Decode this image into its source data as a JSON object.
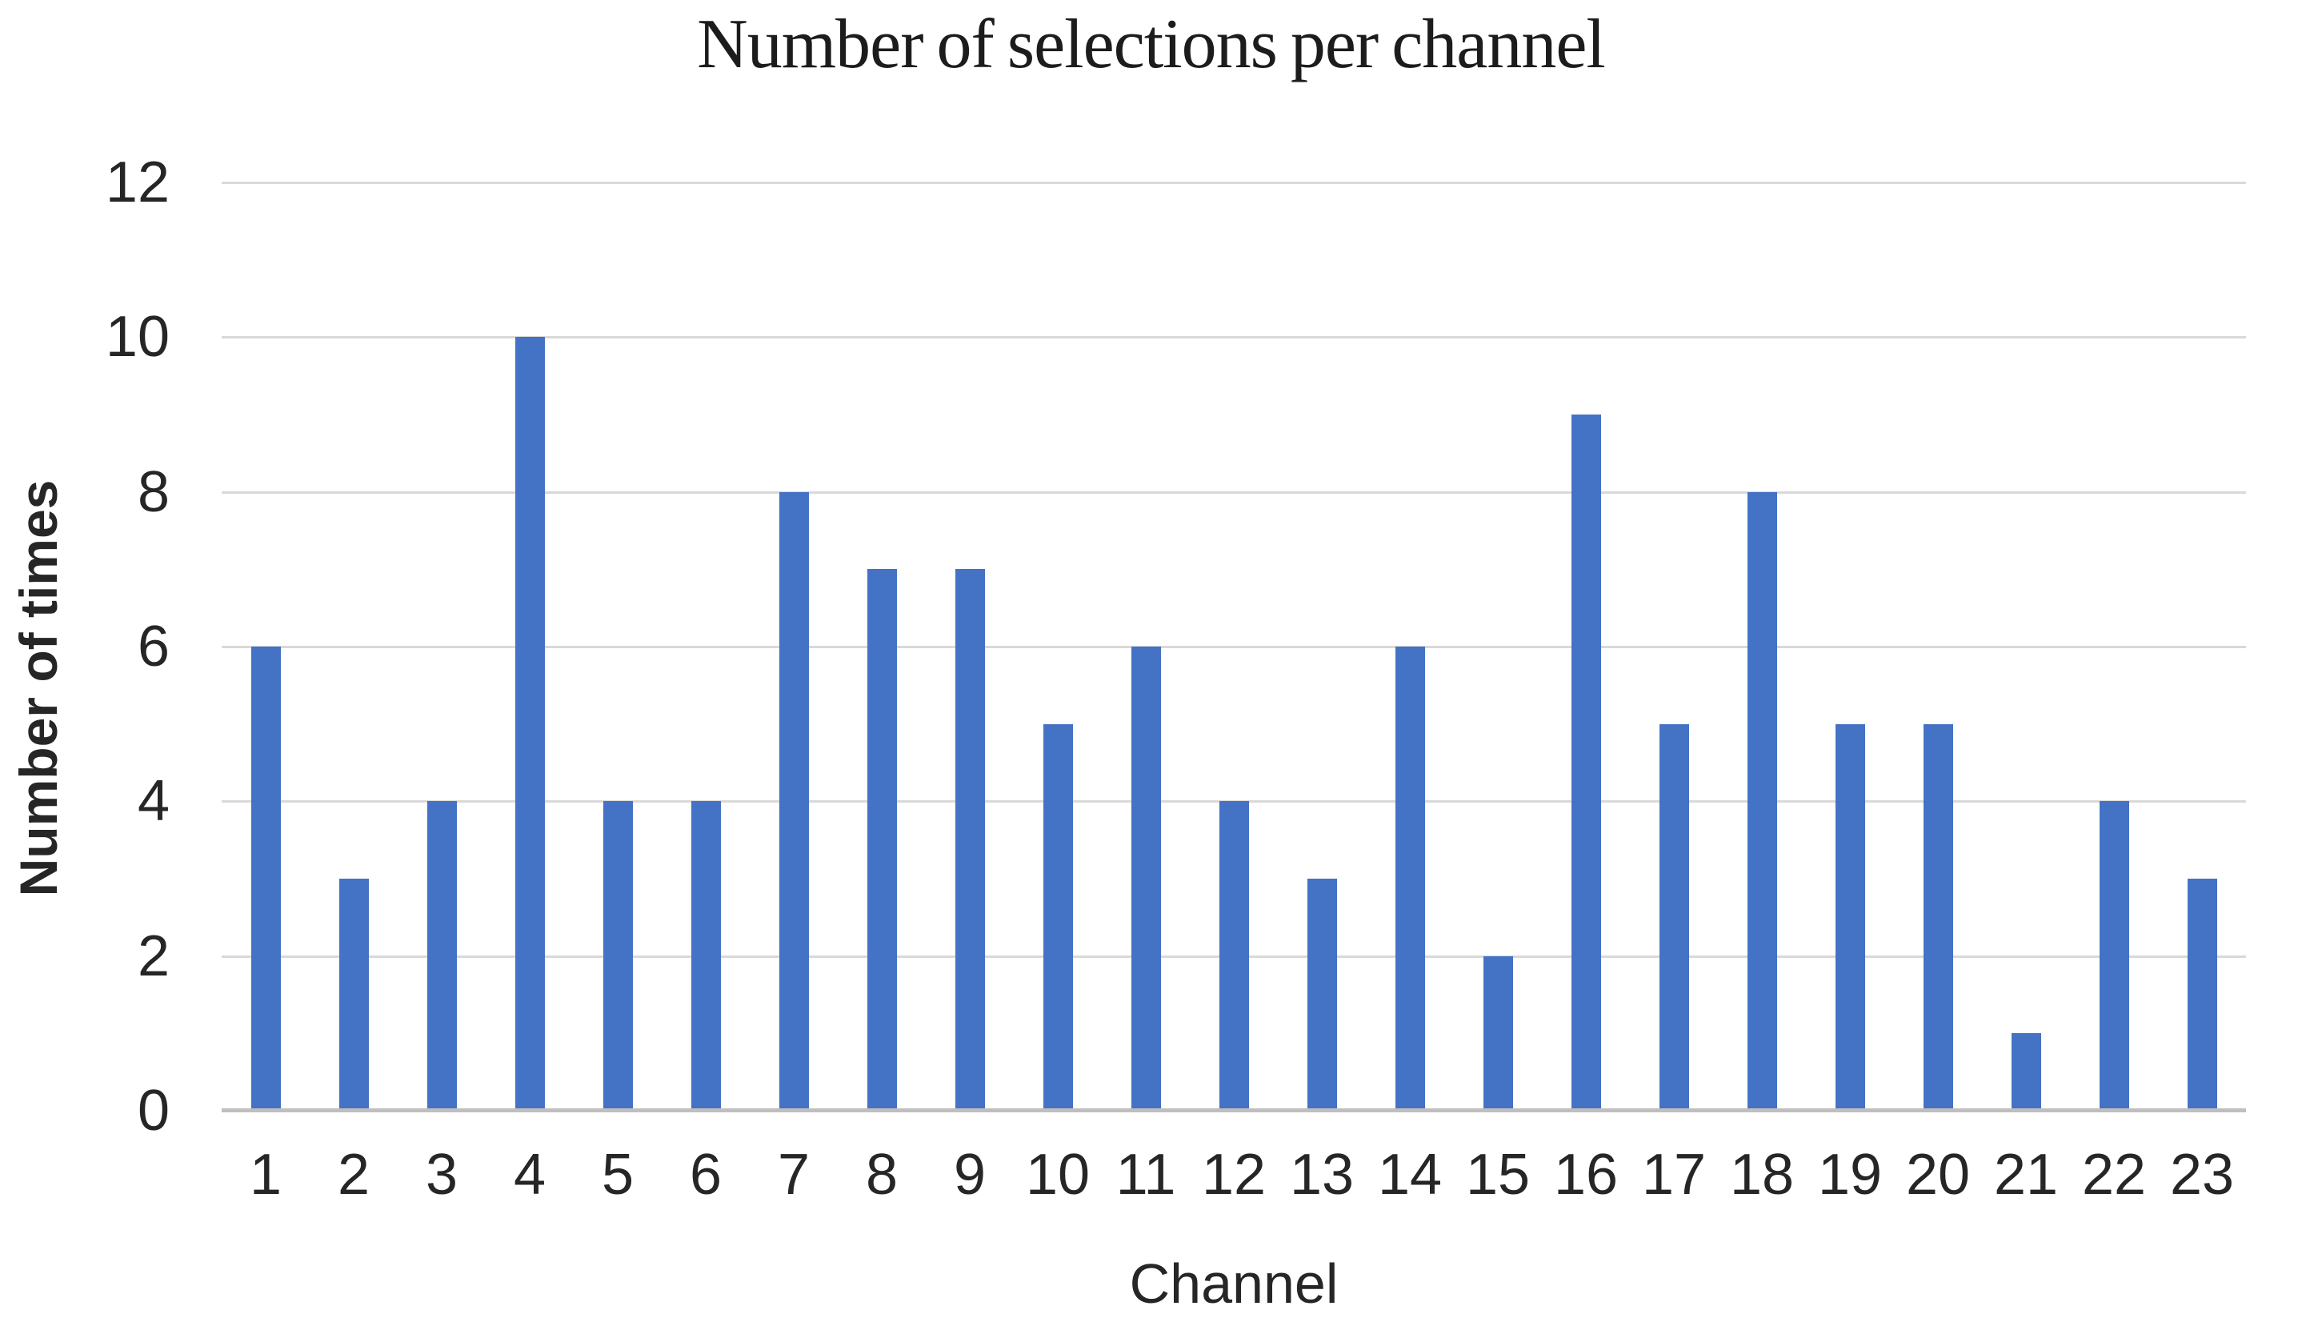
{
  "figure": {
    "title": "Number of selections per channel",
    "x_axis_title": "Channel",
    "y_axis_title": "Number of times"
  },
  "chart_data": {
    "type": "bar",
    "title": "Number of selections per channel",
    "xlabel": "Channel",
    "ylabel": "Number of times",
    "categories": [
      "1",
      "2",
      "3",
      "4",
      "5",
      "6",
      "7",
      "8",
      "9",
      "10",
      "11",
      "12",
      "13",
      "14",
      "15",
      "16",
      "17",
      "18",
      "19",
      "20",
      "21",
      "22",
      "23"
    ],
    "values": [
      6,
      3,
      4,
      10,
      4,
      4,
      8,
      7,
      7,
      5,
      6,
      4,
      3,
      6,
      2,
      9,
      5,
      8,
      5,
      5,
      1,
      4,
      3
    ],
    "series": [
      {
        "name": "Number of times",
        "values": [
          6,
          3,
          4,
          10,
          4,
          4,
          8,
          7,
          7,
          5,
          6,
          4,
          3,
          6,
          2,
          9,
          5,
          8,
          5,
          5,
          1,
          4,
          3
        ]
      }
    ],
    "ylim": [
      0,
      12
    ],
    "yticks": [
      0,
      2,
      4,
      6,
      8,
      10,
      12
    ],
    "grid": "horizontal",
    "legend": "none",
    "bar_color": "#4472C4",
    "gridline_color": "#D9D9D9",
    "axis_line_color": "#BFBFBF",
    "text_color": "#262626"
  }
}
